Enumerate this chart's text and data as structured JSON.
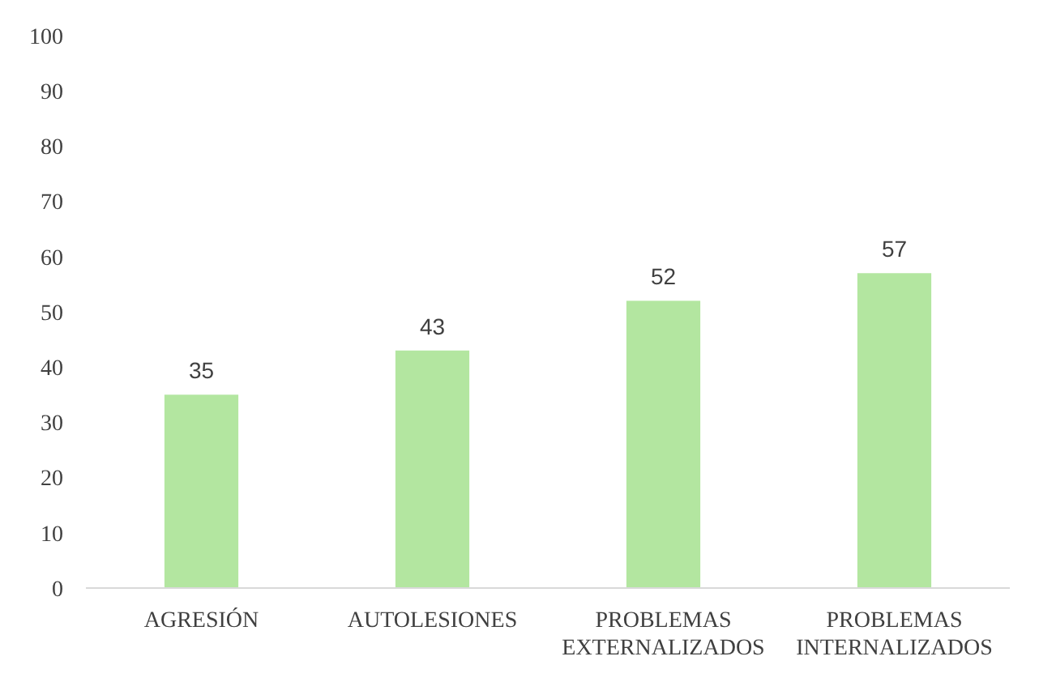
{
  "chart_data": {
    "type": "bar",
    "categories": [
      "AGRESIÓN",
      "AUTOLESIONES",
      "PROBLEMAS EXTERNALIZADOS",
      "PROBLEMAS INTERNALIZADOS"
    ],
    "values": [
      35,
      43,
      52,
      57
    ],
    "color": "#b3e6a0",
    "ylim": [
      0,
      100
    ],
    "yticks": [
      0,
      10,
      20,
      30,
      40,
      50,
      60,
      70,
      80,
      90,
      100
    ],
    "data_labels": true,
    "grid": false
  }
}
